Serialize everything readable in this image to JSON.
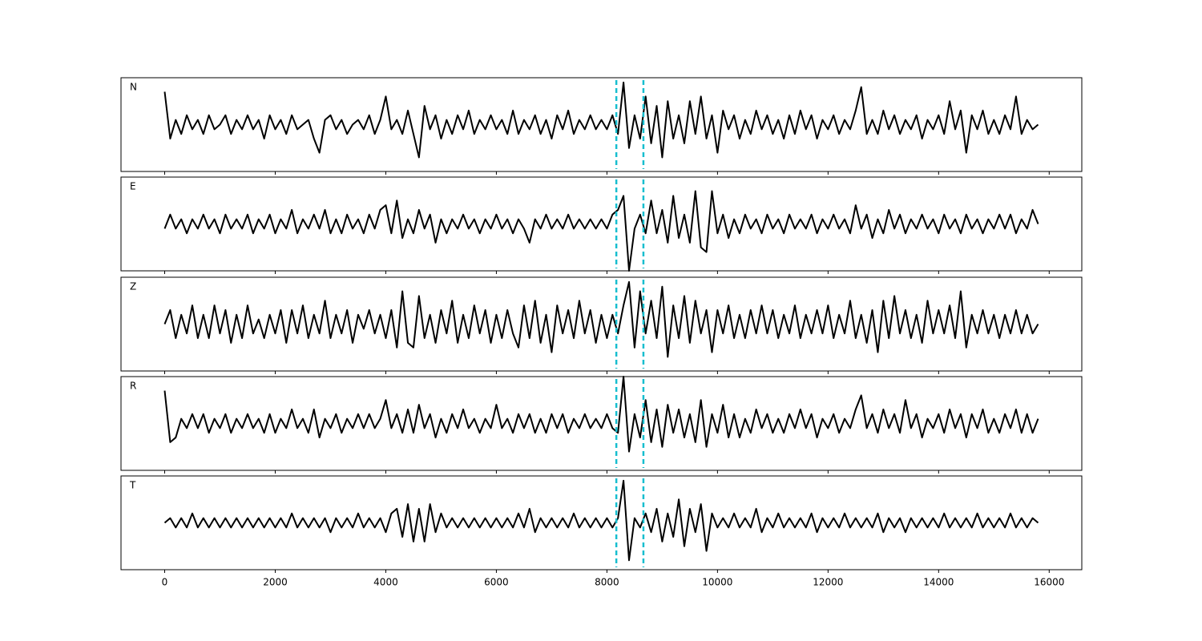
{
  "chart_data": {
    "type": "line",
    "x": [
      0,
      100,
      200,
      300,
      400,
      500,
      600,
      700,
      800,
      900,
      1000,
      1100,
      1200,
      1300,
      1400,
      1500,
      1600,
      1700,
      1800,
      1900,
      2000,
      2100,
      2200,
      2300,
      2400,
      2500,
      2600,
      2700,
      2800,
      2900,
      3000,
      3100,
      3200,
      3300,
      3400,
      3500,
      3600,
      3700,
      3800,
      3900,
      4000,
      4100,
      4200,
      4300,
      4400,
      4500,
      4600,
      4700,
      4800,
      4900,
      5000,
      5100,
      5200,
      5300,
      5400,
      5500,
      5600,
      5700,
      5800,
      5900,
      6000,
      6100,
      6200,
      6300,
      6400,
      6500,
      6600,
      6700,
      6800,
      6900,
      7000,
      7100,
      7200,
      7300,
      7400,
      7500,
      7600,
      7700,
      7800,
      7900,
      8000,
      8100,
      8200,
      8300,
      8400,
      8500,
      8600,
      8700,
      8800,
      8900,
      9000,
      9100,
      9200,
      9300,
      9400,
      9500,
      9600,
      9700,
      9800,
      9900,
      10000,
      10100,
      10200,
      10300,
      10400,
      10500,
      10600,
      10700,
      10800,
      10900,
      11000,
      11100,
      11200,
      11300,
      11400,
      11500,
      11600,
      11700,
      11800,
      11900,
      12000,
      12100,
      12200,
      12300,
      12400,
      12500,
      12600,
      12700,
      12800,
      12900,
      13000,
      13100,
      13200,
      13300,
      13400,
      13500,
      13600,
      13700,
      13800,
      13900,
      14000,
      14100,
      14200,
      14300,
      14400,
      14500,
      14600,
      14700,
      14800,
      14900,
      15000,
      15100,
      15200,
      15300,
      15400,
      15500,
      15600,
      15700,
      15800
    ],
    "xlim": [
      -790,
      16590
    ],
    "xticks": [
      0,
      2000,
      4000,
      6000,
      8000,
      10000,
      12000,
      14000,
      16000
    ],
    "ylim": [
      -10,
      10
    ],
    "picks": [
      8170,
      8660
    ],
    "pick_color": "#17becf",
    "series": [
      {
        "name": "N",
        "color": "#000000",
        "values": [
          7,
          -3,
          1,
          -2,
          2,
          -1,
          1,
          -2,
          2,
          -1,
          0,
          2,
          -2,
          1,
          -1,
          2,
          -1,
          1,
          -3,
          2,
          -1,
          1,
          -2,
          2,
          -1,
          0,
          1,
          -3,
          -6,
          1,
          2,
          -1,
          1,
          -2,
          0,
          1,
          -1,
          2,
          -2,
          1,
          6,
          -1,
          1,
          -2,
          3,
          -2,
          -7,
          4,
          -1,
          2,
          -3,
          1,
          -2,
          2,
          -1,
          3,
          -2,
          1,
          -1,
          2,
          -1,
          1,
          -2,
          3,
          -2,
          1,
          -1,
          2,
          -2,
          1,
          -3,
          2,
          -1,
          3,
          -2,
          1,
          -1,
          2,
          -1,
          1,
          -1,
          2,
          -2,
          9,
          -5,
          2,
          -3,
          6,
          -4,
          4,
          -7,
          5,
          -3,
          2,
          -4,
          5,
          -2,
          6,
          -3,
          2,
          -6,
          3,
          -1,
          2,
          -3,
          1,
          -2,
          3,
          -1,
          2,
          -2,
          1,
          -3,
          2,
          -2,
          3,
          -1,
          2,
          -3,
          1,
          -1,
          2,
          -2,
          1,
          -1,
          3,
          8,
          -2,
          1,
          -2,
          3,
          -1,
          2,
          -2,
          1,
          -1,
          2,
          -3,
          1,
          -1,
          2,
          -2,
          5,
          -1,
          3,
          -6,
          2,
          -1,
          3,
          -2,
          1,
          -2,
          2,
          -1,
          6,
          -2,
          1,
          -1,
          0
        ]
      },
      {
        "name": "E",
        "color": "#000000",
        "values": [
          -1,
          2,
          -1,
          1,
          -2,
          1,
          -1,
          2,
          -1,
          1,
          -2,
          2,
          -1,
          1,
          -1,
          2,
          -2,
          1,
          -1,
          2,
          -2,
          1,
          -1,
          3,
          -2,
          1,
          -1,
          2,
          -1,
          3,
          -2,
          1,
          -2,
          2,
          -1,
          1,
          -2,
          2,
          -1,
          3,
          4,
          -2,
          5,
          -3,
          1,
          -2,
          3,
          -1,
          2,
          -4,
          1,
          -2,
          1,
          -1,
          2,
          -1,
          1,
          -2,
          1,
          -1,
          2,
          -1,
          1,
          -2,
          1,
          -1,
          -4,
          1,
          -1,
          2,
          -1,
          1,
          -1,
          2,
          -1,
          1,
          -1,
          1,
          -1,
          1,
          -1,
          2,
          3,
          6,
          -10,
          -1,
          2,
          -2,
          5,
          -2,
          3,
          -4,
          6,
          -3,
          2,
          -4,
          7,
          -5,
          -6,
          7,
          -2,
          2,
          -3,
          1,
          -2,
          2,
          -1,
          1,
          -2,
          2,
          -1,
          1,
          -2,
          2,
          -1,
          1,
          -1,
          2,
          -2,
          1,
          -1,
          2,
          -1,
          1,
          -2,
          4,
          -1,
          2,
          -3,
          1,
          -2,
          3,
          -1,
          2,
          -2,
          1,
          -1,
          2,
          -1,
          1,
          -2,
          2,
          -1,
          1,
          -2,
          2,
          -1,
          1,
          -2,
          1,
          -1,
          2,
          -1,
          2,
          -2,
          1,
          -1,
          3,
          0
        ]
      },
      {
        "name": "Z",
        "color": "#000000",
        "values": [
          0,
          3,
          -3,
          2,
          -2,
          4,
          -3,
          2,
          -3,
          4,
          -2,
          3,
          -4,
          2,
          -3,
          4,
          -2,
          1,
          -3,
          2,
          -2,
          3,
          -4,
          3,
          -2,
          4,
          -3,
          2,
          -2,
          5,
          -3,
          2,
          -2,
          3,
          -4,
          2,
          -1,
          3,
          -2,
          2,
          -3,
          3,
          -5,
          7,
          -4,
          -5,
          6,
          -3,
          2,
          -4,
          3,
          -2,
          5,
          -4,
          2,
          -3,
          4,
          -2,
          3,
          -4,
          2,
          -3,
          3,
          -2,
          -5,
          4,
          -3,
          5,
          -4,
          2,
          -6,
          4,
          -2,
          3,
          -3,
          5,
          -2,
          3,
          -4,
          2,
          -3,
          2,
          -2,
          4,
          9,
          -5,
          7,
          -2,
          5,
          -3,
          8,
          -7,
          4,
          -3,
          6,
          -4,
          5,
          -2,
          3,
          -6,
          3,
          -2,
          4,
          -3,
          2,
          -3,
          3,
          -2,
          4,
          -2,
          3,
          -3,
          2,
          -2,
          4,
          -3,
          2,
          -2,
          3,
          -2,
          4,
          -3,
          2,
          -2,
          5,
          -3,
          2,
          -4,
          3,
          -6,
          5,
          -3,
          6,
          -2,
          3,
          -3,
          2,
          -4,
          5,
          -2,
          3,
          -2,
          4,
          -3,
          7,
          -5,
          2,
          -2,
          3,
          -2,
          2,
          -3,
          2,
          -2,
          3,
          -2,
          2,
          -2,
          0
        ]
      },
      {
        "name": "R",
        "color": "#000000",
        "values": [
          7,
          -4,
          -3,
          1,
          -1,
          2,
          -1,
          2,
          -2,
          1,
          -1,
          2,
          -2,
          1,
          -1,
          2,
          -1,
          1,
          -2,
          2,
          -2,
          1,
          -1,
          3,
          -1,
          1,
          -2,
          3,
          -3,
          1,
          -1,
          2,
          -2,
          1,
          -1,
          2,
          -1,
          2,
          -1,
          1,
          5,
          -1,
          2,
          -2,
          3,
          -2,
          4,
          -1,
          2,
          -3,
          1,
          -2,
          2,
          -1,
          3,
          -1,
          1,
          -2,
          1,
          -1,
          4,
          -1,
          1,
          -2,
          2,
          -1,
          2,
          -2,
          1,
          -2,
          2,
          -1,
          2,
          -2,
          1,
          -1,
          2,
          -1,
          1,
          -1,
          2,
          -1,
          -2,
          10,
          -6,
          2,
          -3,
          5,
          -4,
          3,
          -5,
          4,
          -2,
          3,
          -3,
          2,
          -4,
          5,
          -5,
          2,
          -2,
          4,
          -3,
          2,
          -3,
          1,
          -2,
          3,
          -1,
          2,
          -2,
          1,
          -2,
          2,
          -1,
          3,
          -1,
          2,
          -3,
          1,
          -1,
          2,
          -2,
          1,
          -1,
          3,
          6,
          -1,
          2,
          -2,
          3,
          -1,
          2,
          -2,
          5,
          -1,
          2,
          -3,
          1,
          -1,
          2,
          -2,
          3,
          -1,
          2,
          -3,
          2,
          -1,
          3,
          -2,
          1,
          -2,
          2,
          -1,
          3,
          -2,
          2,
          -2,
          1
        ]
      },
      {
        "name": "T",
        "color": "#000000",
        "values": [
          0,
          1,
          -1,
          1,
          -1,
          2,
          -1,
          1,
          -1,
          1,
          -1,
          1,
          -1,
          1,
          -1,
          1,
          -1,
          1,
          -1,
          1,
          -1,
          1,
          -1,
          2,
          -1,
          1,
          -1,
          1,
          -1,
          1,
          -2,
          1,
          -1,
          1,
          -1,
          2,
          -1,
          1,
          -1,
          1,
          -2,
          2,
          3,
          -3,
          4,
          -4,
          3,
          -4,
          4,
          -2,
          2,
          -1,
          1,
          -1,
          1,
          -1,
          1,
          -1,
          1,
          -1,
          1,
          -1,
          1,
          -1,
          2,
          -1,
          3,
          -2,
          1,
          -1,
          1,
          -1,
          1,
          -1,
          2,
          -1,
          1,
          -1,
          1,
          -1,
          1,
          -1,
          1,
          9,
          -8,
          1,
          -1,
          2,
          -2,
          3,
          -4,
          2,
          -3,
          5,
          -5,
          3,
          -2,
          4,
          -6,
          2,
          -1,
          1,
          -1,
          2,
          -1,
          1,
          -1,
          3,
          -2,
          1,
          -1,
          2,
          -1,
          1,
          -1,
          1,
          -1,
          2,
          -2,
          1,
          -1,
          1,
          -1,
          2,
          -1,
          1,
          -1,
          1,
          -1,
          2,
          -2,
          1,
          -1,
          1,
          -2,
          1,
          -1,
          1,
          -1,
          1,
          -1,
          2,
          -1,
          1,
          -1,
          1,
          -1,
          2,
          -1,
          1,
          -1,
          1,
          -1,
          2,
          -1,
          1,
          -1,
          1,
          0
        ]
      }
    ]
  }
}
